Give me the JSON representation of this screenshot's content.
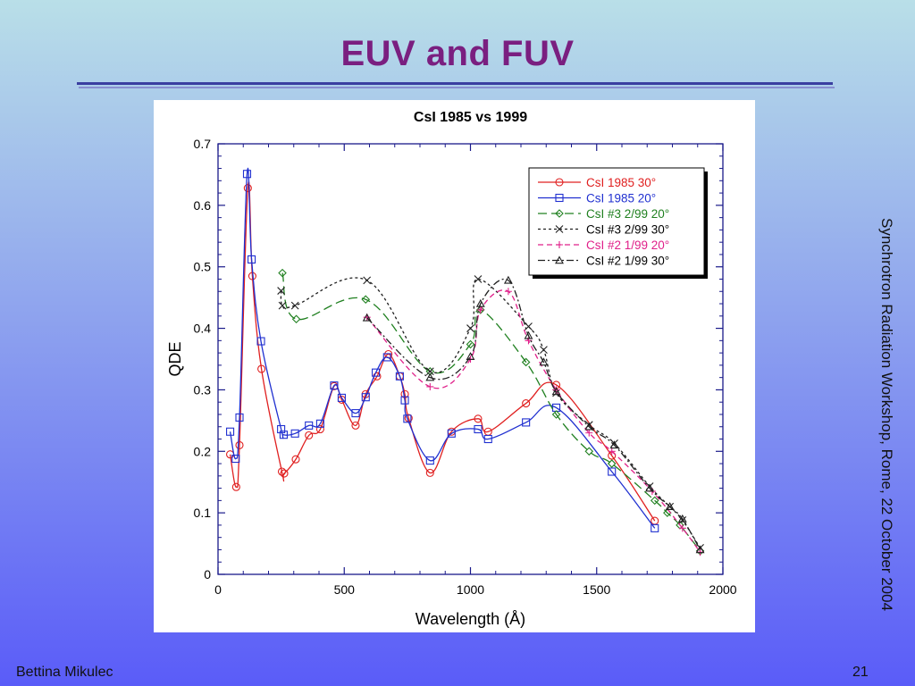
{
  "slide": {
    "title": "EUV and FUV",
    "side_text": "Synchrotron Radiation Workshop, Rome, 22 October 2004",
    "author": "Bettina Mikulec",
    "page_number": "21"
  },
  "chart_data": {
    "type": "line",
    "title": "CsI 1985 vs 1999",
    "xlabel": "Wavelength (Å)",
    "ylabel": "QDE",
    "xlim": [
      0,
      2000
    ],
    "ylim": [
      0,
      0.7
    ],
    "xticks": [
      "0",
      "500",
      "1000",
      "1500",
      "2000"
    ],
    "yticks": [
      "0",
      "0.1",
      "0.2",
      "0.3",
      "0.4",
      "0.5",
      "0.6",
      "0.7"
    ],
    "grid": false,
    "legend_position": "top-right",
    "series": [
      {
        "name": "CsI 1985 30°",
        "color": "#e02020",
        "marker": "circle",
        "dash": "solid",
        "x": [
          48,
          72,
          85,
          118,
          136,
          172,
          253,
          262,
          308,
          360,
          405,
          460,
          490,
          545,
          585,
          630,
          675,
          720,
          740,
          755,
          840,
          925,
          1030,
          1070,
          1220,
          1340,
          1560,
          1730
        ],
        "y": [
          0.195,
          0.142,
          0.21,
          0.628,
          0.485,
          0.334,
          0.167,
          0.164,
          0.187,
          0.226,
          0.236,
          0.306,
          0.284,
          0.242,
          0.293,
          0.322,
          0.358,
          0.322,
          0.293,
          0.254,
          0.165,
          0.232,
          0.253,
          0.232,
          0.278,
          0.308,
          0.193,
          0.087
        ]
      },
      {
        "name": "CsI 1985 20°",
        "color": "#2030d0",
        "marker": "square",
        "dash": "solid",
        "x": [
          48,
          70,
          85,
          115,
          133,
          170,
          250,
          260,
          305,
          360,
          405,
          460,
          490,
          545,
          585,
          625,
          670,
          720,
          740,
          750,
          840,
          925,
          1030,
          1070,
          1220,
          1340,
          1560,
          1730
        ],
        "y": [
          0.232,
          0.188,
          0.255,
          0.651,
          0.512,
          0.379,
          0.236,
          0.227,
          0.229,
          0.242,
          0.245,
          0.307,
          0.287,
          0.262,
          0.288,
          0.328,
          0.353,
          0.322,
          0.283,
          0.253,
          0.185,
          0.229,
          0.236,
          0.22,
          0.247,
          0.271,
          0.167,
          0.075
        ]
      },
      {
        "name": "CsI #3 2/99 20°",
        "color": "#208020",
        "marker": "diamond",
        "dash": "long-dash",
        "x": [
          255,
          310,
          585,
          840,
          1000,
          1040,
          1220,
          1340,
          1470,
          1560,
          1730,
          1780,
          1830,
          1910
        ],
        "y": [
          0.49,
          0.415,
          0.447,
          0.33,
          0.374,
          0.43,
          0.345,
          0.26,
          0.2,
          0.18,
          0.12,
          0.1,
          0.08,
          0.038
        ]
      },
      {
        "name": "CsI #3 2/99 30°",
        "color": "#202020",
        "marker": "x",
        "dash": "short-dash",
        "x": [
          250,
          255,
          305,
          590,
          840,
          1000,
          1030,
          1230,
          1290,
          1340,
          1470,
          1570,
          1710,
          1790,
          1840,
          1910
        ],
        "y": [
          0.461,
          0.437,
          0.437,
          0.478,
          0.33,
          0.4,
          0.48,
          0.403,
          0.365,
          0.295,
          0.243,
          0.213,
          0.143,
          0.11,
          0.088,
          0.043
        ]
      },
      {
        "name": "CsI #2 1/99 20°",
        "color": "#e0208a",
        "marker": "plus",
        "dash": "dash",
        "x": [
          590,
          840,
          1000,
          1040,
          1150,
          1230,
          1340,
          1470,
          1560,
          1720,
          1840,
          1910
        ],
        "y": [
          0.418,
          0.305,
          0.35,
          0.43,
          0.46,
          0.38,
          0.3,
          0.23,
          0.2,
          0.135,
          0.075,
          0.036
        ]
      },
      {
        "name": "CsI #2 1/99 30°",
        "color": "#202020",
        "marker": "triangle",
        "dash": "dash-dot",
        "x": [
          590,
          840,
          1000,
          1040,
          1150,
          1230,
          1290,
          1340,
          1470,
          1570,
          1710,
          1790,
          1840,
          1910
        ],
        "y": [
          0.417,
          0.32,
          0.354,
          0.44,
          0.478,
          0.388,
          0.345,
          0.297,
          0.24,
          0.21,
          0.14,
          0.11,
          0.09,
          0.04
        ]
      }
    ]
  }
}
